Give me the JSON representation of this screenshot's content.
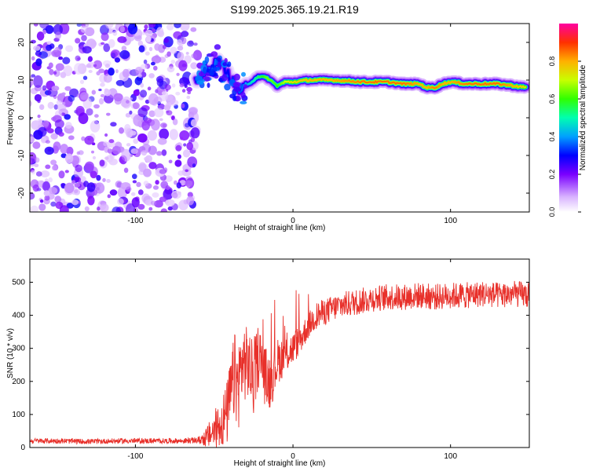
{
  "figure": {
    "title": "S199.2025.365.19.21.R19"
  },
  "chart_data": [
    {
      "type": "heatmap",
      "xlabel": "Height of straight line (km)",
      "ylabel": "Frequency (Hz)",
      "xlim": [
        -167,
        150
      ],
      "ylim": [
        -25,
        25
      ],
      "xticks": [
        -100,
        0,
        100
      ],
      "xtick_labels": [
        "-100",
        "0",
        "100"
      ],
      "yticks": [
        -20,
        -10,
        0,
        10,
        20
      ],
      "ytick_labels": [
        "-20",
        "-10",
        "0",
        "10",
        "20"
      ],
      "noise_region": {
        "x_range": [
          -167,
          -63
        ],
        "y_range": [
          -25,
          25
        ],
        "amplitude": 0.2
      },
      "signal_ridge": {
        "x": [
          -62,
          -57,
          -52,
          -48,
          -44,
          -40,
          -36,
          -33,
          -28,
          -22,
          -16,
          -10,
          -5,
          0,
          10,
          25,
          45,
          60,
          70,
          80,
          85,
          90,
          95,
          100,
          110,
          120,
          130,
          140,
          148
        ],
        "y": [
          10,
          11,
          13,
          15,
          13,
          11,
          8,
          7,
          9,
          11,
          10.5,
          8.5,
          9.5,
          9.5,
          10,
          10,
          9.5,
          9.5,
          9,
          9,
          8,
          8,
          9,
          9.5,
          9,
          9,
          9,
          8.5,
          8
        ],
        "amplitude": [
          0.3,
          0.35,
          0.4,
          0.35,
          0.3,
          0.3,
          0.35,
          0.35,
          0.45,
          0.55,
          0.65,
          0.6,
          0.7,
          0.75,
          0.8,
          0.8,
          0.85,
          0.85,
          0.85,
          0.8,
          0.8,
          0.85,
          0.8,
          0.8,
          0.85,
          0.85,
          0.85,
          0.8,
          0.75
        ]
      },
      "colorbar": {
        "label": "Normalized spectral amplitude",
        "range": [
          0,
          1
        ],
        "ticks": [
          0.0,
          0.2,
          0.4,
          0.6,
          0.8
        ],
        "tick_labels": [
          "0.0",
          "0.2",
          "0.4",
          "0.6",
          "0.8"
        ]
      }
    },
    {
      "type": "line",
      "xlabel": "Height of straight line (km)",
      "ylabel": "SNR (10 * v/v)",
      "xlim": [
        -167,
        150
      ],
      "ylim": [
        0,
        570
      ],
      "xticks": [
        -100,
        0,
        100
      ],
      "xtick_labels": [
        "-100",
        "0",
        "100"
      ],
      "yticks": [
        0,
        100,
        200,
        300,
        400,
        500
      ],
      "ytick_labels": [
        "0",
        "100",
        "200",
        "300",
        "400",
        "500"
      ],
      "series": [
        {
          "name": "SNR",
          "color": "#e8302a",
          "x": [
            -167,
            -150,
            -130,
            -110,
            -90,
            -70,
            -60,
            -55,
            -50,
            -45,
            -42,
            -40,
            -37,
            -35,
            -32,
            -28,
            -25,
            -22,
            -20,
            -18,
            -15,
            -12,
            -10,
            -5,
            0,
            5,
            10,
            15,
            20,
            25,
            30,
            40,
            50,
            60,
            70,
            80,
            90,
            100,
            110,
            120,
            130,
            140,
            150
          ],
          "y": [
            20,
            20,
            18,
            20,
            20,
            20,
            22,
            30,
            50,
            80,
            100,
            150,
            220,
            180,
            260,
            250,
            200,
            280,
            260,
            220,
            200,
            230,
            260,
            280,
            300,
            330,
            370,
            400,
            410,
            420,
            430,
            440,
            450,
            455,
            455,
            460,
            455,
            460,
            460,
            465,
            460,
            465,
            460
          ],
          "noise_amplitude": [
            8,
            8,
            8,
            8,
            8,
            8,
            10,
            30,
            60,
            80,
            100,
            110,
            130,
            140,
            120,
            110,
            110,
            100,
            100,
            90,
            90,
            80,
            70,
            60,
            50,
            45,
            40,
            40,
            40,
            40,
            40,
            40,
            40,
            40,
            40,
            40,
            40,
            40,
            40,
            40,
            40,
            40,
            40
          ]
        }
      ]
    }
  ]
}
